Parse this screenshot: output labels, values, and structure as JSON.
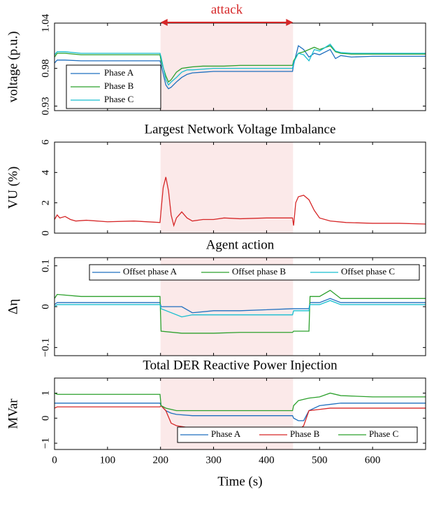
{
  "chart_data": [
    {
      "type": "line",
      "ylabel": "voltage (p.u.)",
      "annotation": {
        "text": "attack",
        "x": [
          200,
          450
        ]
      },
      "xlim": [
        0,
        700
      ],
      "ylim": [
        0.924,
        1.04
      ],
      "yticks": [
        0.93,
        0.98,
        1.04
      ],
      "legend": "south west",
      "x": [
        0,
        5,
        20,
        50,
        100,
        150,
        199,
        201,
        210,
        215,
        220,
        230,
        240,
        250,
        260,
        280,
        300,
        320,
        350,
        400,
        449,
        451,
        460,
        470,
        480,
        490,
        500,
        520,
        530,
        540,
        560,
        600,
        700
      ],
      "series": [
        {
          "name": "Phase A",
          "color": "#1f6fbf",
          "values": [
            0.987,
            0.991,
            0.991,
            0.99,
            0.99,
            0.99,
            0.99,
            0.985,
            0.958,
            0.953,
            0.955,
            0.962,
            0.968,
            0.972,
            0.974,
            0.975,
            0.976,
            0.976,
            0.976,
            0.976,
            0.976,
            0.985,
            1.01,
            1.005,
            0.995,
            1.0,
            0.998,
            1.005,
            0.993,
            0.997,
            0.995,
            0.996,
            0.996
          ]
        },
        {
          "name": "Phase B",
          "color": "#2ca02c",
          "values": [
            0.995,
            1.0,
            1.0,
            0.998,
            0.998,
            0.998,
            0.998,
            0.99,
            0.97,
            0.962,
            0.965,
            0.975,
            0.98,
            0.981,
            0.982,
            0.983,
            0.983,
            0.983,
            0.984,
            0.984,
            0.984,
            0.99,
            1.0,
            1.002,
            1.005,
            1.008,
            1.005,
            1.01,
            1.002,
            1.0,
            0.999,
            0.999,
            0.999
          ]
        },
        {
          "name": "Phase C",
          "color": "#17becf",
          "values": [
            0.998,
            1.002,
            1.002,
            1.0,
            1.0,
            1.0,
            1.0,
            0.995,
            0.965,
            0.958,
            0.962,
            0.968,
            0.975,
            0.978,
            0.978,
            0.979,
            0.98,
            0.98,
            0.98,
            0.98,
            0.98,
            0.988,
            1.0,
            0.998,
            0.99,
            1.005,
            1.003,
            1.012,
            1.003,
            1.001,
            1.0,
            1.0,
            1.0
          ]
        }
      ]
    },
    {
      "type": "line",
      "title": "Largest Network Voltage Imbalance",
      "ylabel": "VU (%)",
      "xlim": [
        0,
        700
      ],
      "ylim": [
        0,
        6
      ],
      "yticks": [
        0,
        2,
        4,
        6
      ],
      "x": [
        0,
        5,
        10,
        20,
        30,
        40,
        60,
        100,
        150,
        199,
        201,
        205,
        210,
        215,
        220,
        225,
        230,
        240,
        250,
        260,
        280,
        300,
        320,
        350,
        400,
        449,
        451,
        455,
        460,
        470,
        480,
        490,
        500,
        520,
        550,
        600,
        650,
        700
      ],
      "series": [
        {
          "color": "#d62728",
          "values": [
            0.9,
            1.2,
            1.0,
            1.1,
            0.9,
            0.8,
            0.85,
            0.75,
            0.8,
            0.7,
            1.5,
            3.0,
            3.7,
            2.8,
            1.2,
            0.5,
            1.0,
            1.4,
            1.0,
            0.8,
            0.9,
            0.9,
            1.0,
            0.95,
            1.0,
            1.0,
            0.5,
            2.0,
            2.4,
            2.5,
            2.2,
            1.5,
            1.0,
            0.8,
            0.7,
            0.65,
            0.65,
            0.6
          ]
        }
      ]
    },
    {
      "type": "line",
      "title": "Agent action",
      "ylabel": "Δη",
      "xlim": [
        0,
        700
      ],
      "ylim": [
        -0.12,
        0.12
      ],
      "yticks": [
        {
          "value": -0.1,
          "label": "−0.1"
        },
        0,
        0.1
      ],
      "legend": "north",
      "x": [
        0,
        5,
        50,
        100,
        199,
        201,
        240,
        260,
        300,
        350,
        449,
        451,
        480,
        482,
        500,
        520,
        540,
        560,
        600,
        700
      ],
      "series": [
        {
          "name": "Offset phase A",
          "color": "#1f6fbf",
          "values": [
            0.005,
            0.01,
            0.01,
            0.01,
            0.01,
            0.0,
            0.0,
            -0.015,
            -0.01,
            -0.01,
            -0.005,
            -0.005,
            -0.005,
            0.01,
            0.01,
            0.02,
            0.01,
            0.01,
            0.01,
            0.01
          ]
        },
        {
          "name": "Offset phase B",
          "color": "#2ca02c",
          "values": [
            0.02,
            0.03,
            0.025,
            0.025,
            0.025,
            -0.06,
            -0.065,
            -0.065,
            -0.065,
            -0.063,
            -0.063,
            -0.06,
            -0.06,
            0.025,
            0.025,
            0.04,
            0.02,
            0.02,
            0.02,
            0.02
          ]
        },
        {
          "name": "Offset phase C",
          "color": "#17becf",
          "values": [
            0.0,
            0.005,
            0.005,
            0.005,
            0.005,
            -0.005,
            -0.025,
            -0.02,
            -0.02,
            -0.02,
            -0.02,
            -0.01,
            -0.01,
            0.005,
            0.005,
            0.015,
            0.005,
            0.005,
            0.005,
            0.005
          ]
        }
      ]
    },
    {
      "type": "line",
      "title": "Total DER Reactive Power Injection",
      "ylabel": "MVar",
      "xlabel": "Time (s)",
      "xlim": [
        0,
        700
      ],
      "xticks": [
        0,
        100,
        200,
        300,
        400,
        500,
        600
      ],
      "ylim": [
        -1.25,
        1.6
      ],
      "yticks": [
        {
          "value": -1,
          "label": "−1"
        },
        0,
        1
      ],
      "legend": "south east",
      "x": [
        0,
        5,
        50,
        100,
        199,
        201,
        210,
        220,
        230,
        260,
        300,
        400,
        449,
        451,
        460,
        470,
        480,
        500,
        520,
        540,
        600,
        700
      ],
      "series": [
        {
          "name": "Phase A",
          "color": "#1f6fbf",
          "values": [
            0.6,
            0.6,
            0.6,
            0.6,
            0.6,
            0.5,
            0.3,
            0.2,
            0.15,
            0.1,
            0.1,
            0.1,
            0.1,
            0.0,
            -0.1,
            -0.1,
            0.3,
            0.5,
            0.55,
            0.6,
            0.6,
            0.6
          ]
        },
        {
          "name": "Phase B",
          "color": "#d62728",
          "values": [
            0.4,
            0.45,
            0.45,
            0.45,
            0.45,
            0.5,
            0.3,
            -0.2,
            -0.3,
            -0.4,
            -0.4,
            -0.38,
            -0.38,
            -0.45,
            -0.5,
            -0.3,
            0.3,
            0.35,
            0.4,
            0.4,
            0.4,
            0.4
          ]
        },
        {
          "name": "Phase C",
          "color": "#2ca02c",
          "values": [
            1.0,
            0.95,
            0.95,
            0.95,
            0.95,
            0.5,
            0.4,
            0.35,
            0.3,
            0.3,
            0.3,
            0.3,
            0.3,
            0.5,
            0.7,
            0.75,
            0.8,
            0.85,
            1.0,
            0.9,
            0.85,
            0.85
          ]
        }
      ]
    }
  ]
}
